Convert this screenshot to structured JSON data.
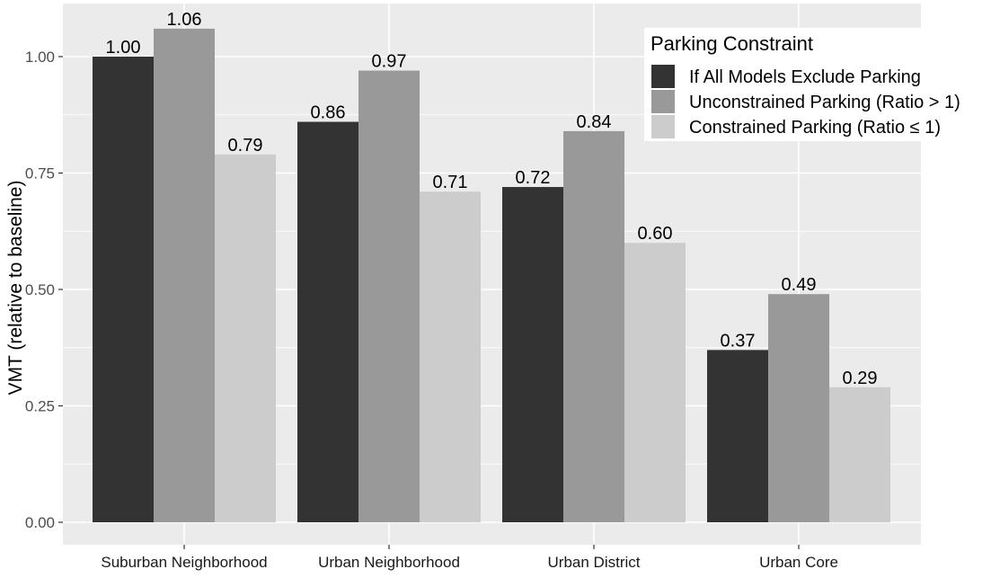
{
  "chart_data": {
    "type": "bar",
    "categories": [
      "Suburban Neighborhood",
      "Urban Neighborhood",
      "Urban District",
      "Urban Core"
    ],
    "series": [
      {
        "name": "If All Models Exclude Parking",
        "values": [
          1.0,
          0.86,
          0.72,
          0.37
        ],
        "labels": [
          "1.00",
          "0.86",
          "0.72",
          "0.37"
        ],
        "color": "#333333"
      },
      {
        "name": "Unconstrained Parking (Ratio > 1)",
        "values": [
          1.06,
          0.97,
          0.84,
          0.49
        ],
        "labels": [
          "1.06",
          "0.97",
          "0.84",
          "0.49"
        ],
        "color": "#999999"
      },
      {
        "name": "Constrained Parking (Ratio ≤ 1)",
        "values": [
          0.79,
          0.71,
          0.6,
          0.29
        ],
        "labels": [
          "0.79",
          "0.71",
          "0.60",
          "0.29"
        ],
        "color": "#cccccc"
      }
    ],
    "xlabel": "",
    "ylabel": "VMT (relative to baseline)",
    "ylim": [
      0,
      1.1
    ],
    "yticks": [
      0,
      0.25,
      0.5,
      0.75,
      1.0
    ],
    "ytick_labels": [
      "0.00",
      "0.25",
      "0.50",
      "0.75",
      "1.00"
    ],
    "legend": {
      "title": "Parking Constraint",
      "position": "top-right"
    },
    "grid": true,
    "panel_background": "#ebebeb",
    "grid_color": "#ffffff"
  }
}
